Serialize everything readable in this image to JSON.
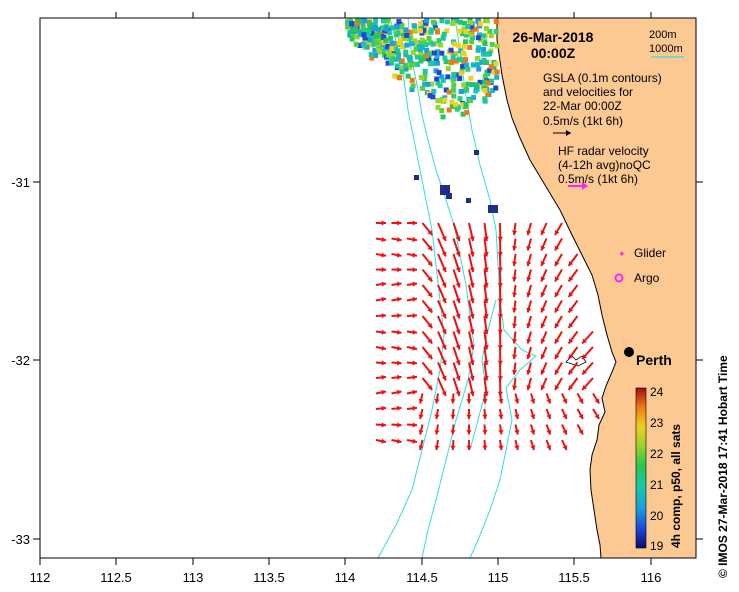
{
  "header": {
    "date": "26-Mar-2018",
    "time": "00:00Z"
  },
  "depth_legend": {
    "line1": "200m",
    "line2": "1000m",
    "contour_color": "#33dddd"
  },
  "gsla_note": {
    "line1": "GSLA (0.1m contours)",
    "line2": "and velocities for",
    "line3": "22-Mar 00:00Z",
    "line4": "0.5m/s (1kt 6h)"
  },
  "hf_note": {
    "line1": "HF radar velocity",
    "line2": "(4-12h avg)noQC",
    "line3": "0.5m/s (1kt 6h)",
    "arrow_color": "#ff22ff"
  },
  "legend_markers": {
    "glider": "Glider",
    "argo": "Argo",
    "marker_color": "#ff22ff"
  },
  "place": {
    "name": "Perth"
  },
  "colorbar": {
    "title": "4h comp, p50, all sats",
    "ticks": [
      "24",
      "23",
      "22",
      "21",
      "20",
      "19"
    ],
    "min": 19,
    "max": 24
  },
  "credit": "© IMOS 27-Mar-2018 17:41 Hobart Time",
  "axes": {
    "x_ticks": [
      "112",
      "112.5",
      "113",
      "113.5",
      "114",
      "114.5",
      "115",
      "115.5",
      "116"
    ],
    "y_ticks": [
      "-31",
      "-32",
      "-33"
    ],
    "xlim": [
      112,
      116.3
    ],
    "ylim": [
      -33.1,
      -30.1
    ]
  },
  "colors": {
    "land": "#fcc993",
    "arrow": "#ee1111",
    "contour": "#33dddd"
  }
}
